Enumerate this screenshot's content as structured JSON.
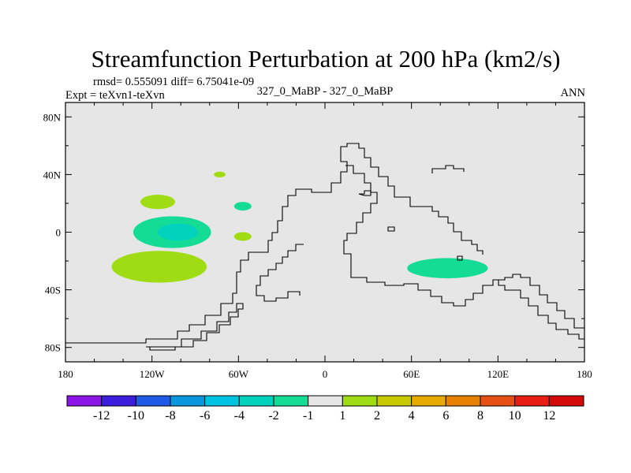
{
  "chart_data": {
    "type": "contour-map",
    "title": "Streamfunction Perturbation at 200 hPa (km2/s)",
    "stats_line": "rmsd= 0.555091 diff= 6.75041e-09",
    "left_string": "Expt = teXvn1-teXvn",
    "center_string": "327_0_MaBP - 327_0_MaBP",
    "right_string": "ANN",
    "x_ticks": [
      {
        "value": -180,
        "label": "180"
      },
      {
        "value": -120,
        "label": "120W"
      },
      {
        "value": -60,
        "label": "60W"
      },
      {
        "value": 0,
        "label": "0"
      },
      {
        "value": 60,
        "label": "60E"
      },
      {
        "value": 120,
        "label": "120E"
      },
      {
        "value": 180,
        "label": "180"
      }
    ],
    "y_ticks": [
      {
        "value": 80,
        "label": "80N"
      },
      {
        "value": 40,
        "label": "40N"
      },
      {
        "value": 0,
        "label": "0"
      },
      {
        "value": -40,
        "label": "40S"
      },
      {
        "value": -80,
        "label": "80S"
      }
    ],
    "xlim": [
      -180,
      180
    ],
    "ylim": [
      -90,
      90
    ],
    "colorbar": {
      "levels": [
        "-12",
        "-10",
        "-8",
        "-6",
        "-4",
        "-2",
        "-1",
        "1",
        "2",
        "4",
        "6",
        "8",
        "10",
        "12"
      ],
      "colors": [
        "#8C14E6",
        "#3C1EDC",
        "#1E5AE6",
        "#0A96DC",
        "#00C3E1",
        "#00D2BE",
        "#14DC96",
        "#E6E6E6",
        "#A0DC14",
        "#C8C800",
        "#E6AA00",
        "#E68200",
        "#E65014",
        "#E61E14",
        "#D20A0A"
      ]
    },
    "features": [
      {
        "name": "positive anomaly 20N 115W",
        "level": "1 to 2",
        "color": "#A0DC14",
        "lon": -116,
        "lat": 21,
        "lon_radius": 12,
        "lat_radius": 5
      },
      {
        "name": "negative anomaly 0N 100W outer",
        "level": "-2 to -1",
        "color": "#14DC96",
        "lon": -106,
        "lat": 0,
        "lon_radius": 27,
        "lat_radius": 11
      },
      {
        "name": "negative anomaly 0N 100W inner",
        "level": "-4 to -2",
        "color": "#00D2BE",
        "lon": -102,
        "lat": 0,
        "lon_radius": 14,
        "lat_radius": 6
      },
      {
        "name": "positive anomaly 25S 115W",
        "level": "1 to 2",
        "color": "#A0DC14",
        "lon": -115,
        "lat": -24,
        "lon_radius": 33,
        "lat_radius": 11
      },
      {
        "name": "positive anomaly 40N 73W",
        "level": "1 to 2",
        "color": "#A0DC14",
        "lon": -73,
        "lat": 40,
        "lon_radius": 4,
        "lat_radius": 2
      },
      {
        "name": "negative anomaly 18N 57W",
        "level": "-2 to -1",
        "color": "#14DC96",
        "lon": -57,
        "lat": 18,
        "lon_radius": 6,
        "lat_radius": 3
      },
      {
        "name": "positive anomaly 3S 57W",
        "level": "1 to 2",
        "color": "#A0DC14",
        "lon": -57,
        "lat": -3,
        "lon_radius": 6,
        "lat_radius": 3
      },
      {
        "name": "negative anomaly 25S 85E",
        "level": "-2 to -1",
        "color": "#14DC96",
        "lon": 85,
        "lat": -25,
        "lon_radius": 28,
        "lat_radius": 7
      }
    ]
  }
}
